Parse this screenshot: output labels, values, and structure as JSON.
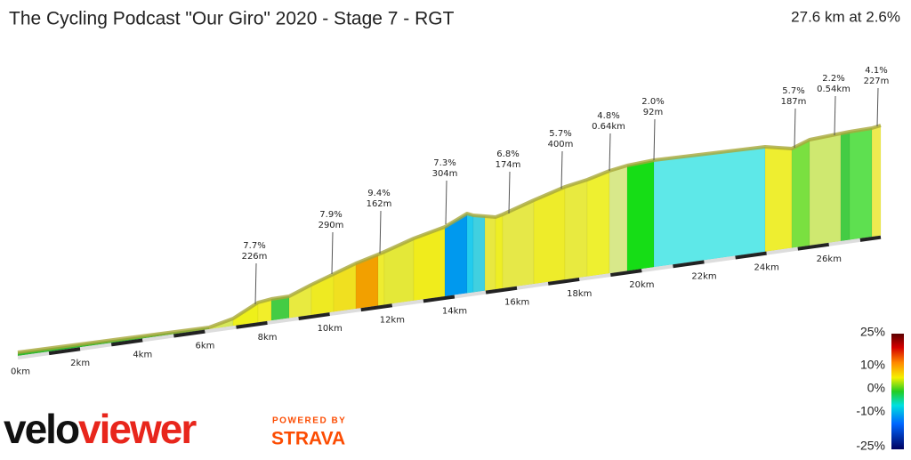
{
  "header": {
    "title": "The Cycling Podcast \"Our Giro\" 2020 - Stage 7 - RGT",
    "summary": "27.6 km at 2.6%"
  },
  "climbs": [
    {
      "grade": "7.7%",
      "length": "226m"
    },
    {
      "grade": "7.9%",
      "length": "290m"
    },
    {
      "grade": "9.4%",
      "length": "162m"
    },
    {
      "grade": "7.3%",
      "length": "304m"
    },
    {
      "grade": "6.8%",
      "length": "174m"
    },
    {
      "grade": "5.7%",
      "length": "400m"
    },
    {
      "grade": "4.8%",
      "length": "0.64km"
    },
    {
      "grade": "2.0%",
      "length": "92m"
    },
    {
      "grade": "5.7%",
      "length": "187m"
    },
    {
      "grade": "2.2%",
      "length": "0.54km"
    },
    {
      "grade": "4.1%",
      "length": "227m"
    }
  ],
  "distance_labels": [
    "0km",
    "2km",
    "4km",
    "6km",
    "8km",
    "10km",
    "12km",
    "14km",
    "16km",
    "18km",
    "20km",
    "22km",
    "24km",
    "26km"
  ],
  "legend": {
    "ticks": [
      "25%",
      "10%",
      "0%",
      "-10%",
      "-25%"
    ]
  },
  "branding": {
    "logo_start": "velo",
    "logo_end": "viewer",
    "powered_by": "POWERED BY",
    "strava": "STRAVA"
  }
}
